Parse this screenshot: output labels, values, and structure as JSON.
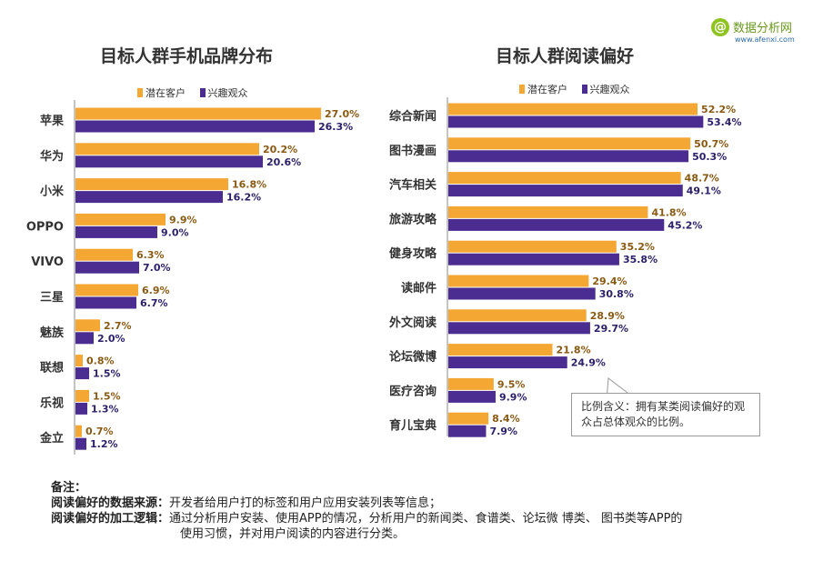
{
  "logo": {
    "mark": "@",
    "text": "数据分析网",
    "url": "www.afenxi.com"
  },
  "legend": {
    "series1": "潜在客户",
    "series2": "兴趣观众"
  },
  "colors": {
    "series1": "#f5a733",
    "series2": "#4b2d91",
    "label1": "#8a5a12",
    "label2": "#2b1f6b"
  },
  "chart_data": [
    {
      "type": "bar",
      "orientation": "horizontal",
      "title": "目标人群手机品牌分布",
      "categories": [
        "苹果",
        "华为",
        "小米",
        "OPPO",
        "VIVO",
        "三星",
        "魅族",
        "联想",
        "乐视",
        "金立"
      ],
      "series": [
        {
          "name": "潜在客户",
          "values": [
            27.0,
            20.2,
            16.8,
            9.9,
            6.3,
            6.9,
            2.7,
            0.8,
            1.5,
            0.7
          ],
          "labels": [
            "27.0%",
            "20.2%",
            "16.8%",
            "9.9%",
            "6.3%",
            "6.9%",
            "2.7%",
            "0.8%",
            "1.5%",
            "0.7%"
          ]
        },
        {
          "name": "兴趣观众",
          "values": [
            26.3,
            20.6,
            16.2,
            9.0,
            7.0,
            6.7,
            2.0,
            1.5,
            1.3,
            1.2
          ],
          "labels": [
            "26.3%",
            "20.6%",
            "16.2%",
            "9.0%",
            "7.0%",
            "6.7%",
            "2.0%",
            "1.5%",
            "1.3%",
            "1.2%"
          ]
        }
      ],
      "legend_position": "top",
      "grid": false
    },
    {
      "type": "bar",
      "orientation": "horizontal",
      "title": "目标人群阅读偏好",
      "categories": [
        "综合新闻",
        "图书漫画",
        "汽车相关",
        "旅游攻略",
        "健身攻略",
        "读邮件",
        "外文阅读",
        "论坛微博",
        "医疗咨询",
        "育儿宝典"
      ],
      "series": [
        {
          "name": "潜在客户",
          "values": [
            52.2,
            50.7,
            48.7,
            41.8,
            35.2,
            29.4,
            28.9,
            21.8,
            9.5,
            8.4
          ],
          "labels": [
            "52.2%",
            "50.7%",
            "48.7%",
            "41.8%",
            "35.2%",
            "29.4%",
            "28.9%",
            "21.8%",
            "9.5%",
            "8.4%"
          ]
        },
        {
          "name": "兴趣观众",
          "values": [
            53.4,
            50.3,
            49.1,
            45.2,
            35.8,
            30.8,
            29.7,
            24.9,
            9.9,
            7.9
          ],
          "labels": [
            "53.4%",
            "50.3%",
            "49.1%",
            "45.2%",
            "35.8%",
            "30.8%",
            "29.7%",
            "24.9%",
            "9.9%",
            "7.9%"
          ]
        }
      ],
      "legend_position": "top",
      "grid": false,
      "annotation": "比例含义：拥有某类阅读偏好的观众占总体观众的比例。"
    }
  ],
  "notes": {
    "heading": "备注：",
    "rows": [
      {
        "key": "阅读偏好的数据来源：",
        "text": "开发者给用户打的标签和用户应用安装列表等信息；"
      },
      {
        "key": "阅读偏好的加工逻辑：",
        "text": "通过分析用户安装、使用APP的情况，分析用户的新闻类、食谱类、论坛微  博类、 图书类等APP的"
      },
      {
        "key": "",
        "text": "使用习惯，并对用户阅读的内容进行分类。"
      }
    ]
  }
}
